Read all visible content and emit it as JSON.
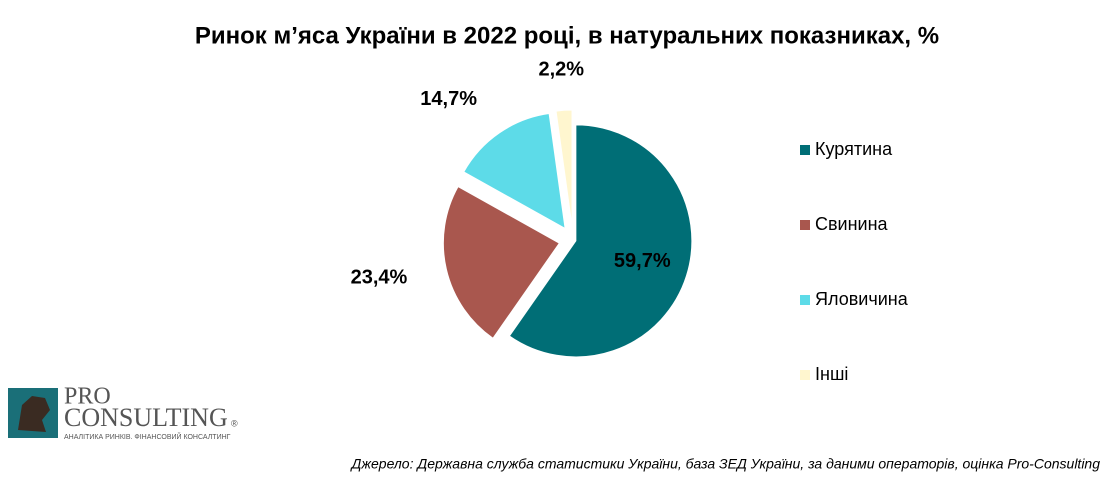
{
  "chart_data": {
    "type": "pie",
    "title": "Ринок м’яса України в 2022 році, в натуральних показниках, %",
    "categories": [
      "Курятина",
      "Свинина",
      "Яловичина",
      "Інші"
    ],
    "values": [
      59.7,
      23.4,
      14.7,
      2.2
    ],
    "value_labels": [
      "59,7%",
      "23,4%",
      "14,7%",
      "2,2%"
    ],
    "colors": [
      "#006e76",
      "#a9574e",
      "#5ddbe8",
      "#fff6cf"
    ],
    "legend": "right"
  },
  "source": "Джерело: Державна служба статистики України, база ЗЕД України, за даними операторів, оцінка Pro-Consulting",
  "logo": {
    "line1": "PRO",
    "line2": "CONSULTING",
    "mark": "®",
    "tagline": "АНАЛІТИКА РИНКІВ. ФІНАНСОВИЙ КОНСАЛТИНГ"
  }
}
